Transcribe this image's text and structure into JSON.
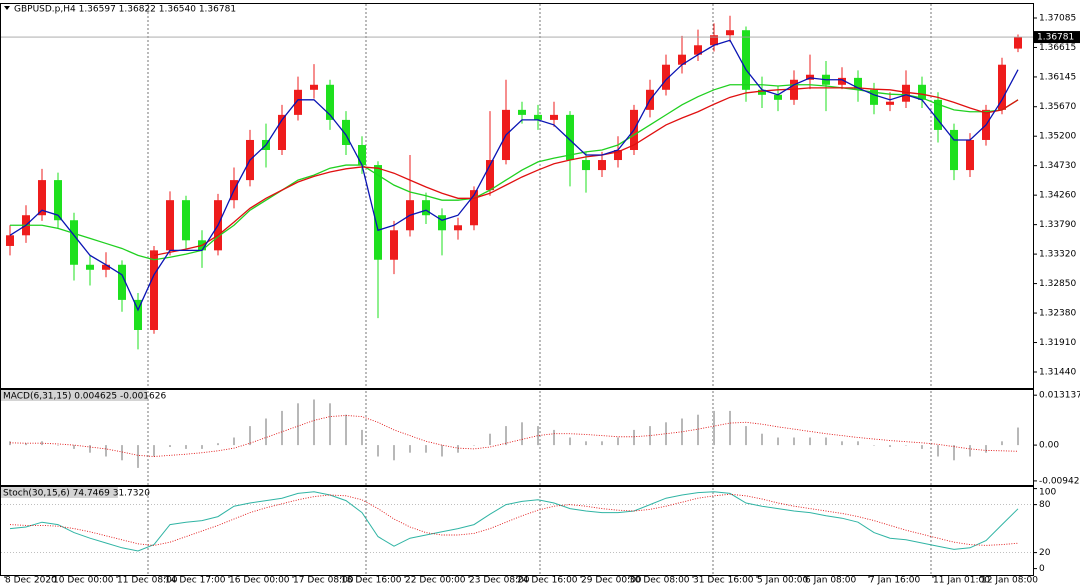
{
  "chart_data": [
    {
      "type": "candlestick",
      "title": "GBPUSD.p,H4  1.36597 1.36822 1.36540 1.36781",
      "categories": [
        "8 Dec 2020",
        null,
        null,
        "10 Dec 00:00",
        null,
        null,
        null,
        "11 Dec 08:00",
        null,
        null,
        "14 Dec 17:00",
        null,
        null,
        null,
        "16 Dec 00:00",
        null,
        null,
        null,
        "17 Dec 08:00",
        null,
        null,
        "18 Dec 16:00",
        null,
        null,
        null,
        "22 Dec 00:00",
        null,
        null,
        null,
        "23 Dec 08:00",
        null,
        null,
        "24 Dec 16:00",
        null,
        null,
        null,
        "29 Dec 00:00",
        null,
        null,
        "30 Dec 08:00",
        null,
        null,
        null,
        "31 Dec 16:00",
        null,
        null,
        null,
        "5 Jan 00:00",
        null,
        null,
        "6 Jan 08:00",
        null,
        null,
        null,
        "7 Jan 16:00",
        null,
        null,
        null,
        "11 Jan 01:00",
        null,
        null,
        "12 Jan 08:00",
        null,
        null
      ],
      "open": [
        1.3345,
        1.3362,
        1.3394,
        1.345,
        1.3386,
        1.3315,
        1.3307,
        1.3315,
        1.3259,
        1.3211,
        1.3338,
        1.3418,
        1.3354,
        1.3338,
        1.3418,
        1.345,
        1.3514,
        1.3498,
        1.3554,
        1.3594,
        1.3602,
        1.3546,
        1.3506,
        1.3474,
        1.3323,
        1.337,
        1.3418,
        1.3394,
        1.337,
        1.3378,
        1.3434,
        1.3482,
        1.3562,
        1.3554,
        1.3546,
        1.3554,
        1.3482,
        1.3466,
        1.3482,
        1.3498,
        1.3562,
        1.3594,
        1.3634,
        1.365,
        1.3665,
        1.3681,
        1.3689,
        1.3594,
        1.3586,
        1.3578,
        1.361,
        1.3618,
        1.3602,
        1.3613,
        1.3594,
        1.357,
        1.3575,
        1.3602,
        1.3578,
        1.353,
        1.3466,
        1.3514,
        1.3562,
        1.36597
      ],
      "high": [
        1.3378,
        1.341,
        1.3468,
        1.3462,
        1.3398,
        1.333,
        1.3335,
        1.3322,
        1.327,
        1.3345,
        1.3432,
        1.3425,
        1.337,
        1.3428,
        1.347,
        1.353,
        1.354,
        1.357,
        1.3615,
        1.3635,
        1.361,
        1.356,
        1.352,
        1.348,
        1.3385,
        1.349,
        1.343,
        1.3405,
        1.339,
        1.344,
        1.356,
        1.361,
        1.3575,
        1.357,
        1.3575,
        1.356,
        1.3495,
        1.3495,
        1.352,
        1.357,
        1.361,
        1.365,
        1.368,
        1.369,
        1.37,
        1.3712,
        1.3695,
        1.3615,
        1.36,
        1.3625,
        1.365,
        1.364,
        1.363,
        1.3625,
        1.3605,
        1.359,
        1.3625,
        1.3615,
        1.359,
        1.354,
        1.3525,
        1.357,
        1.3645,
        1.36822
      ],
      "low": [
        1.333,
        1.335,
        1.3385,
        1.3372,
        1.329,
        1.3282,
        1.3295,
        1.324,
        1.318,
        1.3205,
        1.333,
        1.334,
        1.331,
        1.333,
        1.3405,
        1.344,
        1.347,
        1.349,
        1.3545,
        1.358,
        1.353,
        1.349,
        1.346,
        1.323,
        1.33,
        1.336,
        1.338,
        1.333,
        1.3355,
        1.337,
        1.3425,
        1.3475,
        1.354,
        1.353,
        1.3535,
        1.344,
        1.343,
        1.3455,
        1.347,
        1.349,
        1.355,
        1.3585,
        1.362,
        1.364,
        1.3655,
        1.367,
        1.3575,
        1.3565,
        1.356,
        1.357,
        1.3595,
        1.356,
        1.3595,
        1.3575,
        1.3555,
        1.356,
        1.3565,
        1.3565,
        1.351,
        1.345,
        1.3455,
        1.3505,
        1.3555,
        1.3654
      ],
      "close": [
        1.3362,
        1.3394,
        1.345,
        1.3386,
        1.3315,
        1.3307,
        1.3315,
        1.3259,
        1.3211,
        1.3338,
        1.3418,
        1.3354,
        1.3338,
        1.3418,
        1.345,
        1.3514,
        1.3498,
        1.3554,
        1.3594,
        1.3602,
        1.3546,
        1.3506,
        1.3474,
        1.3323,
        1.337,
        1.3418,
        1.3394,
        1.337,
        1.3378,
        1.3434,
        1.3482,
        1.3562,
        1.3554,
        1.3546,
        1.3554,
        1.3482,
        1.3466,
        1.3482,
        1.3498,
        1.3562,
        1.3594,
        1.3634,
        1.365,
        1.3665,
        1.3681,
        1.3689,
        1.3594,
        1.3586,
        1.3578,
        1.361,
        1.3618,
        1.3602,
        1.3613,
        1.3594,
        1.357,
        1.3575,
        1.3602,
        1.3578,
        1.353,
        1.3466,
        1.3514,
        1.3562,
        1.3634,
        1.36781
      ],
      "up_color": "#ee1c1c",
      "down_color": "#1ee01e",
      "moving_averages": [
        {
          "color": "#20d020",
          "values": [
            1.3378,
            1.3378,
            1.3378,
            1.3373,
            1.3365,
            1.3357,
            1.3349,
            1.3341,
            1.333,
            1.3323,
            1.3327,
            1.3332,
            1.3338,
            1.336,
            1.3378,
            1.3402,
            1.3418,
            1.3434,
            1.345,
            1.3458,
            1.3469,
            1.3474,
            1.3474,
            1.3458,
            1.3442,
            1.3431,
            1.3425,
            1.3418,
            1.3418,
            1.3421,
            1.3434,
            1.345,
            1.3466,
            1.3479,
            1.3485,
            1.349,
            1.3495,
            1.3498,
            1.3506,
            1.3522,
            1.3538,
            1.3554,
            1.357,
            1.3583,
            1.3594,
            1.3602,
            1.3602,
            1.3602,
            1.36,
            1.3602,
            1.3602,
            1.36,
            1.3597,
            1.3594,
            1.359,
            1.3587,
            1.3586,
            1.3581,
            1.3571,
            1.3562,
            1.3559,
            1.3559,
            1.3562,
            1.3578
          ]
        },
        {
          "color": "#e01010",
          "values": [
            null,
            null,
            null,
            null,
            null,
            null,
            null,
            null,
            null,
            1.333,
            1.3335,
            1.334,
            1.3346,
            1.3362,
            1.3383,
            1.3405,
            1.3421,
            1.3434,
            1.3447,
            1.3456,
            1.3463,
            1.3468,
            1.3471,
            1.3469,
            1.3461,
            1.345,
            1.3439,
            1.3429,
            1.3421,
            1.3421,
            1.3429,
            1.3442,
            1.3455,
            1.3466,
            1.3476,
            1.3482,
            1.3487,
            1.349,
            1.3495,
            1.3506,
            1.3522,
            1.3538,
            1.3549,
            1.3559,
            1.3571,
            1.3582,
            1.3589,
            1.3592,
            1.3594,
            1.3595,
            1.3597,
            1.3597,
            1.3597,
            1.3597,
            1.3595,
            1.3594,
            1.359,
            1.3587,
            1.3582,
            1.3574,
            1.3565,
            1.3557,
            1.3562,
            1.3578
          ]
        },
        {
          "color": "#0a14b4",
          "values": [
            1.3362,
            1.3378,
            1.3402,
            1.3394,
            1.3362,
            1.333,
            1.3315,
            1.3299,
            1.3243,
            1.3299,
            1.3338,
            1.3338,
            1.3338,
            1.3378,
            1.3434,
            1.3482,
            1.3506,
            1.3546,
            1.3578,
            1.3578,
            1.3554,
            1.3522,
            1.3474,
            1.337,
            1.3378,
            1.3394,
            1.3402,
            1.3386,
            1.3394,
            1.3426,
            1.3474,
            1.3522,
            1.3546,
            1.3546,
            1.3538,
            1.3514,
            1.349,
            1.349,
            1.3498,
            1.353,
            1.3578,
            1.361,
            1.3634,
            1.365,
            1.3665,
            1.3673,
            1.3626,
            1.3594,
            1.3586,
            1.3602,
            1.3613,
            1.361,
            1.361,
            1.3597,
            1.3586,
            1.3578,
            1.3586,
            1.3578,
            1.3546,
            1.3514,
            1.3514,
            1.3538,
            1.3578,
            1.3626
          ]
        }
      ],
      "last_price": 1.36781,
      "ylim": [
        1.31185,
        1.37324
      ],
      "yticks": [
        1.37085,
        1.36615,
        1.36145,
        {
          "value": 1.3567,
          "label": "1.35670"
        },
        {
          "value": 1.352,
          "label": "1.35200"
        },
        {
          "value": 1.3473,
          "label": "1.34730"
        },
        {
          "value": 1.3426,
          "label": "1.34260"
        },
        {
          "value": 1.3379,
          "label": "1.33790"
        },
        {
          "value": 1.3332,
          "label": "1.33320"
        },
        {
          "value": 1.3285,
          "label": "1.32850"
        },
        {
          "value": 1.3238,
          "label": "1.32380"
        },
        {
          "value": 1.3191,
          "label": "1.31910"
        },
        {
          "value": 1.3144,
          "label": "1.31440"
        }
      ]
    },
    {
      "type": "macd",
      "title": "MACD(6,31,15) 0.004625 -0.001626",
      "histogram": {
        "color": "#b8b8b8",
        "values": [
          0.001,
          0.0005,
          0.001,
          0,
          -0.001,
          -0.002,
          -0.003,
          -0.004,
          -0.006,
          -0.003,
          -0.0005,
          -0.001,
          -0.001,
          0.0005,
          0.002,
          0.005,
          0.007,
          0.009,
          0.011,
          0.012,
          0.011,
          0.008,
          0.004,
          -0.003,
          -0.004,
          -0.002,
          -0.002,
          -0.003,
          -0.002,
          0,
          0.003,
          0.005,
          0.006,
          0.005,
          0.004,
          0.002,
          0.001,
          0.001,
          0.002,
          0.004,
          0.005,
          0.006,
          0.007,
          0.008,
          0.009,
          0.009,
          0.005,
          0.003,
          0.002,
          0.002,
          0.002,
          0.002,
          0.001,
          0.001,
          0,
          -0.0005,
          0,
          -0.001,
          -0.003,
          -0.004,
          -0.003,
          -0.002,
          0.001,
          0.004625
        ]
      },
      "signal": {
        "color": "#e01010",
        "values": [
          0.0006,
          0.0005,
          0.0005,
          0.0003,
          0,
          -0.0005,
          -0.001,
          -0.0018,
          -0.0027,
          -0.003,
          -0.0027,
          -0.0024,
          -0.002,
          -0.0015,
          -0.0008,
          0.0005,
          0.002,
          0.0035,
          0.005,
          0.0065,
          0.0075,
          0.0078,
          0.0075,
          0.006,
          0.004,
          0.0025,
          0.001,
          0,
          -0.0008,
          -0.001,
          -0.0005,
          0.0005,
          0.0015,
          0.0025,
          0.003,
          0.003,
          0.0028,
          0.0025,
          0.0022,
          0.0022,
          0.0025,
          0.003,
          0.0035,
          0.0042,
          0.005,
          0.0058,
          0.006,
          0.0055,
          0.0048,
          0.0042,
          0.0036,
          0.003,
          0.0025,
          0.002,
          0.0016,
          0.0012,
          0.0009,
          0.0006,
          0.0002,
          -0.0004,
          -0.001,
          -0.0014,
          -0.0015,
          -0.001626
        ]
      },
      "ylim": [
        -0.0105,
        0.0145
      ],
      "yticks": [
        0.013137,
        {
          "value": 0,
          "label": "0.00"
        },
        -0.009422
      ]
    },
    {
      "type": "stochastic",
      "title": "Stoch(30,15,6) 74.7469 31.7320",
      "main": {
        "color": "#30b4a4",
        "values": [
          50,
          52,
          58,
          55,
          45,
          38,
          32,
          26,
          22,
          30,
          55,
          58,
          60,
          65,
          78,
          82,
          85,
          88,
          94,
          96,
          92,
          85,
          70,
          40,
          28,
          38,
          42,
          46,
          50,
          55,
          68,
          80,
          84,
          86,
          82,
          75,
          72,
          70,
          70,
          72,
          80,
          88,
          92,
          95,
          96,
          94,
          82,
          78,
          75,
          72,
          70,
          66,
          63,
          58,
          45,
          38,
          36,
          32,
          28,
          24,
          26,
          35,
          55,
          74.7469
        ]
      },
      "signal": {
        "color": "#e01010",
        "values": [
          55,
          54,
          54,
          53,
          50,
          46,
          41,
          36,
          31,
          29,
          33,
          40,
          47,
          54,
          62,
          70,
          76,
          81,
          86,
          90,
          92,
          91,
          86,
          75,
          62,
          52,
          45,
          42,
          42,
          44,
          50,
          58,
          66,
          73,
          78,
          80,
          78,
          75,
          73,
          72,
          74,
          78,
          83,
          88,
          91,
          93,
          91,
          87,
          82,
          78,
          75,
          72,
          69,
          65,
          60,
          54,
          48,
          43,
          38,
          33,
          30,
          29,
          30,
          31.732
        ]
      },
      "levels": [
        20,
        80
      ],
      "ylim": [
        -8,
        102
      ],
      "yticks": [
        100,
        80,
        20,
        0
      ]
    }
  ]
}
